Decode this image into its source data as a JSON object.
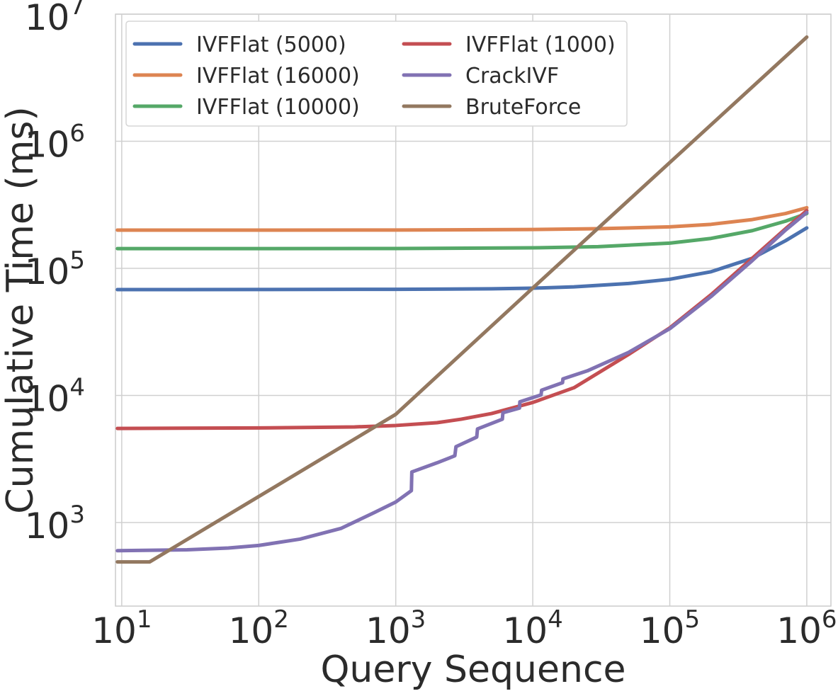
{
  "chart_data": {
    "type": "line",
    "title": "",
    "xlabel": "Query Sequence",
    "ylabel": "Cumulative Time (ms)",
    "x_scale": "log",
    "y_scale": "log",
    "xlim": [
      9.0,
      1500000
    ],
    "ylim": [
      220,
      10000000
    ],
    "x_ticks": [
      {
        "value": 10,
        "base": "10",
        "exp": "1"
      },
      {
        "value": 100,
        "base": "10",
        "exp": "2"
      },
      {
        "value": 1000,
        "base": "10",
        "exp": "3"
      },
      {
        "value": 10000,
        "base": "10",
        "exp": "4"
      },
      {
        "value": 100000,
        "base": "10",
        "exp": "5"
      },
      {
        "value": 1000000,
        "base": "10",
        "exp": "6"
      }
    ],
    "y_ticks": [
      {
        "value": 1000,
        "base": "10",
        "exp": "3"
      },
      {
        "value": 10000,
        "base": "10",
        "exp": "4"
      },
      {
        "value": 100000,
        "base": "10",
        "exp": "5"
      },
      {
        "value": 1000000,
        "base": "10",
        "exp": "6"
      },
      {
        "value": 10000000,
        "base": "10",
        "exp": "7"
      }
    ],
    "grid": true,
    "legend": {
      "position": "top-left",
      "columns": 2
    },
    "series": [
      {
        "name": "IVFFlat (5000)",
        "color": "#4c72b0",
        "points": [
          [
            9.3,
            68000
          ],
          [
            100,
            68100
          ],
          [
            1000,
            68400
          ],
          [
            5000,
            69000
          ],
          [
            10000,
            69800
          ],
          [
            20000,
            71500
          ],
          [
            50000,
            76000
          ],
          [
            100000,
            82000
          ],
          [
            200000,
            94000
          ],
          [
            400000,
            120000
          ],
          [
            700000,
            165000
          ],
          [
            1000000,
            208000
          ]
        ]
      },
      {
        "name": "IVFFlat (16000)",
        "color": "#dd8452",
        "points": [
          [
            9.3,
            200000
          ],
          [
            100,
            200000
          ],
          [
            1000,
            200300
          ],
          [
            10000,
            202000
          ],
          [
            30000,
            205000
          ],
          [
            100000,
            212000
          ],
          [
            200000,
            222000
          ],
          [
            400000,
            242000
          ],
          [
            700000,
            270000
          ],
          [
            1000000,
            300000
          ]
        ]
      },
      {
        "name": "IVFFlat (10000)",
        "color": "#55a868",
        "points": [
          [
            9.3,
            143000
          ],
          [
            100,
            143000
          ],
          [
            1000,
            143200
          ],
          [
            10000,
            145000
          ],
          [
            30000,
            148000
          ],
          [
            100000,
            158000
          ],
          [
            200000,
            172000
          ],
          [
            400000,
            198000
          ],
          [
            700000,
            235000
          ],
          [
            1000000,
            270000
          ]
        ]
      },
      {
        "name": "IVFFlat (1000)",
        "color": "#c44e52",
        "points": [
          [
            9.3,
            5500
          ],
          [
            100,
            5550
          ],
          [
            500,
            5650
          ],
          [
            1000,
            5800
          ],
          [
            2000,
            6100
          ],
          [
            3000,
            6500
          ],
          [
            5000,
            7200
          ],
          [
            10000,
            8800
          ],
          [
            20000,
            11500
          ],
          [
            50000,
            21000
          ],
          [
            100000,
            34000
          ],
          [
            200000,
            62000
          ],
          [
            400000,
            120000
          ],
          [
            700000,
            205000
          ],
          [
            1000000,
            285000
          ]
        ]
      },
      {
        "name": "CrackIVF",
        "color": "#8172b3",
        "points": [
          [
            9.3,
            600
          ],
          [
            30,
            610
          ],
          [
            60,
            630
          ],
          [
            100,
            660
          ],
          [
            200,
            740
          ],
          [
            400,
            900
          ],
          [
            700,
            1200
          ],
          [
            1000,
            1450
          ],
          [
            1300,
            1780
          ],
          [
            1310,
            2500
          ],
          [
            2000,
            2950
          ],
          [
            2700,
            3350
          ],
          [
            2750,
            3950
          ],
          [
            3900,
            4700
          ],
          [
            3950,
            5450
          ],
          [
            6000,
            6500
          ],
          [
            6050,
            7300
          ],
          [
            8000,
            7950
          ],
          [
            8050,
            8900
          ],
          [
            11500,
            10100
          ],
          [
            11600,
            11000
          ],
          [
            16500,
            12600
          ],
          [
            16600,
            13500
          ],
          [
            25000,
            15600
          ],
          [
            50000,
            21800
          ],
          [
            100000,
            33500
          ],
          [
            200000,
            60000
          ],
          [
            400000,
            115000
          ],
          [
            700000,
            200000
          ],
          [
            1000000,
            275000
          ]
        ]
      },
      {
        "name": "BruteForce",
        "color": "#937860",
        "points": [
          [
            9.3,
            490
          ],
          [
            16,
            490
          ],
          [
            1000,
            7100
          ],
          [
            10000,
            70000
          ],
          [
            100000,
            680000
          ],
          [
            1000000,
            6600000
          ]
        ]
      }
    ]
  }
}
